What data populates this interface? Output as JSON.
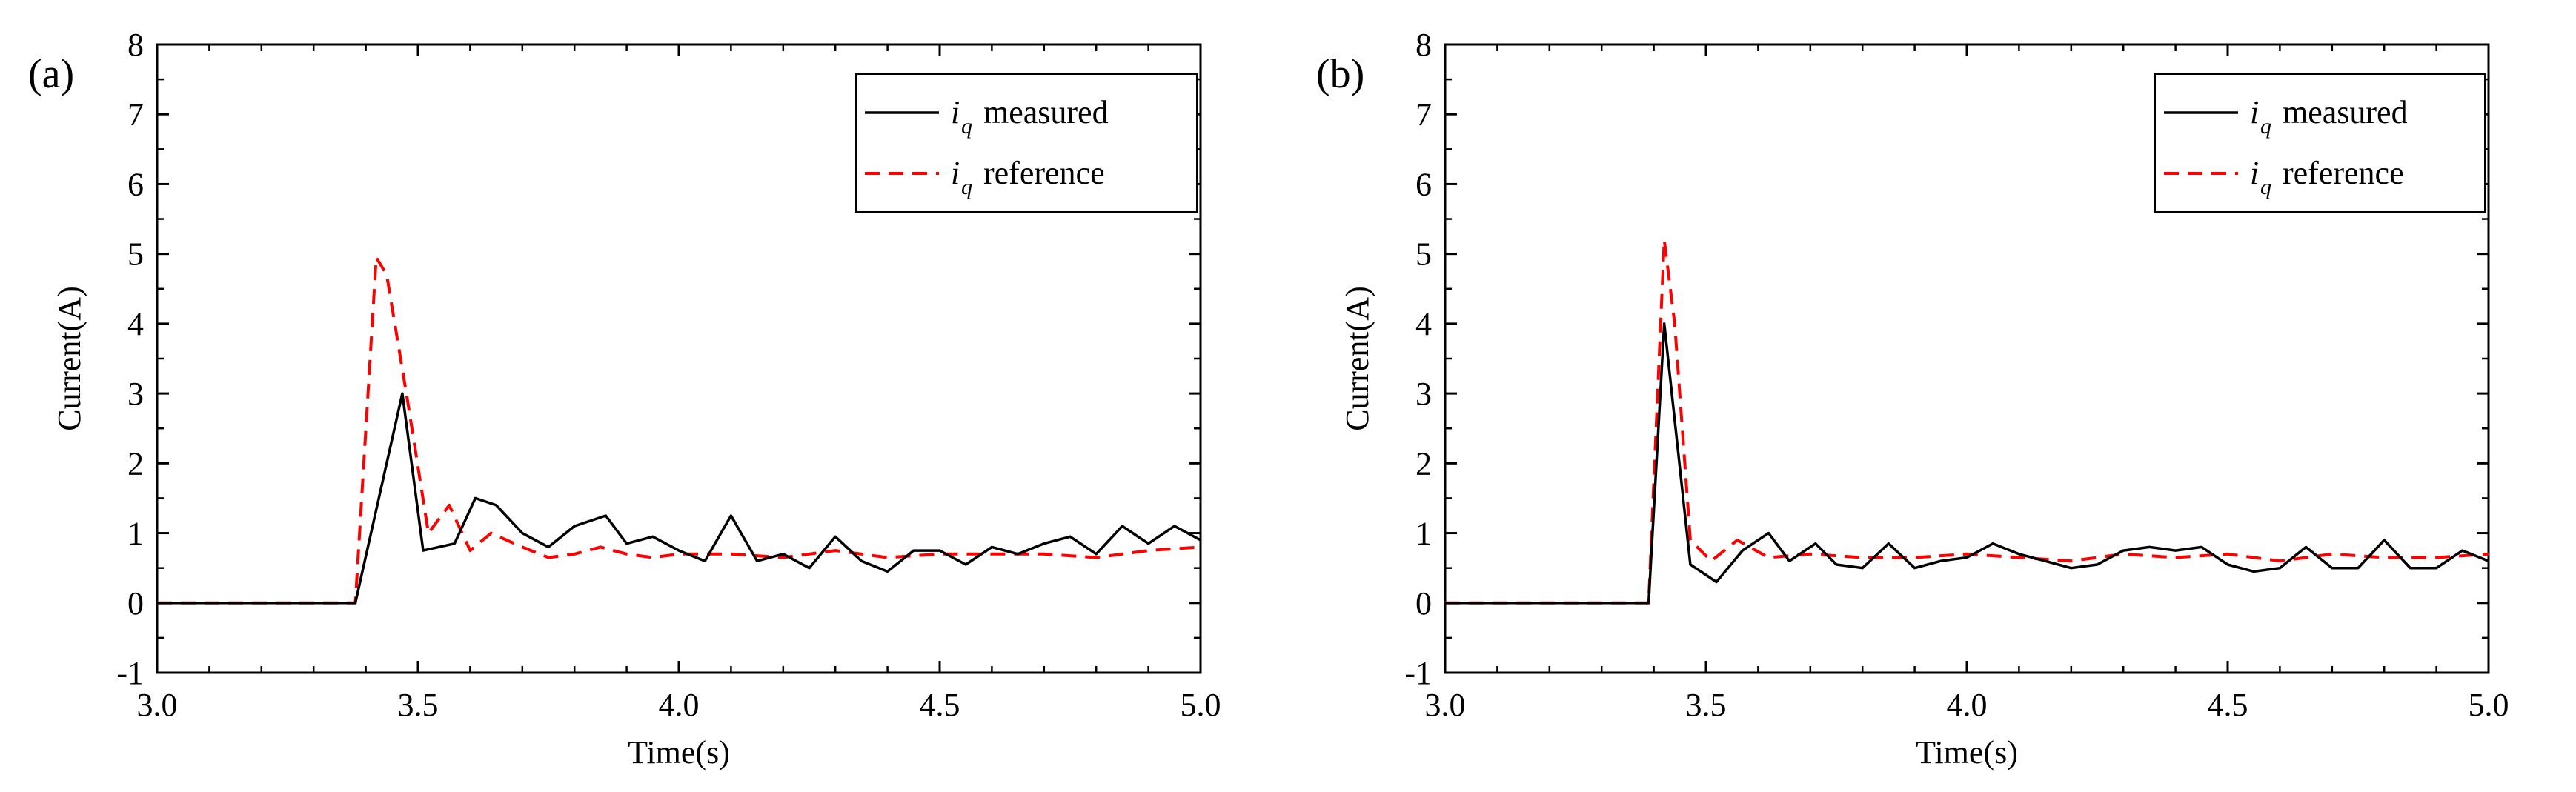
{
  "chart_data": [
    {
      "type": "line",
      "panel_label": "(a)",
      "xlabel": "Time(s)",
      "ylabel": "Current(A)",
      "xlim": [
        3.0,
        5.0
      ],
      "ylim": [
        -1,
        8
      ],
      "xticks": [
        "3.0",
        "3.5",
        "4.0",
        "4.5",
        "5.0"
      ],
      "yticks": [
        "-1",
        "0",
        "1",
        "2",
        "3",
        "4",
        "5",
        "6",
        "7",
        "8"
      ],
      "legend_position": "top-right",
      "series": [
        {
          "name": "measured",
          "legend_symbol": "i",
          "legend_subscript": "q",
          "style": "solid",
          "color": "#000000",
          "x": [
            3.0,
            3.38,
            3.47,
            3.51,
            3.57,
            3.61,
            3.65,
            3.7,
            3.75,
            3.8,
            3.86,
            3.9,
            3.95,
            4.0,
            4.05,
            4.1,
            4.15,
            4.2,
            4.25,
            4.3,
            4.35,
            4.4,
            4.45,
            4.5,
            4.55,
            4.6,
            4.65,
            4.7,
            4.75,
            4.8,
            4.85,
            4.9,
            4.95,
            5.0
          ],
          "y": [
            0,
            0,
            3.0,
            0.75,
            0.85,
            1.5,
            1.4,
            1.0,
            0.8,
            1.1,
            1.25,
            0.85,
            0.95,
            0.75,
            0.6,
            1.25,
            0.6,
            0.7,
            0.5,
            0.95,
            0.6,
            0.45,
            0.75,
            0.75,
            0.55,
            0.8,
            0.7,
            0.85,
            0.95,
            0.7,
            1.1,
            0.85,
            1.1,
            0.9
          ]
        },
        {
          "name": "reference",
          "legend_symbol": "i",
          "legend_subscript": "q",
          "style": "dashed",
          "color": "#ff0000",
          "x": [
            3.0,
            3.38,
            3.42,
            3.44,
            3.48,
            3.52,
            3.56,
            3.6,
            3.64,
            3.7,
            3.75,
            3.8,
            3.85,
            3.9,
            3.95,
            4.0,
            4.1,
            4.2,
            4.3,
            4.4,
            4.5,
            4.6,
            4.7,
            4.8,
            4.9,
            5.0
          ],
          "y": [
            0,
            0,
            4.95,
            4.7,
            2.9,
            1.0,
            1.4,
            0.75,
            1.0,
            0.8,
            0.65,
            0.7,
            0.8,
            0.7,
            0.65,
            0.7,
            0.7,
            0.65,
            0.75,
            0.65,
            0.7,
            0.7,
            0.7,
            0.65,
            0.75,
            0.8
          ]
        }
      ]
    },
    {
      "type": "line",
      "panel_label": "(b)",
      "xlabel": "Time(s)",
      "ylabel": "Current(A)",
      "xlim": [
        3.0,
        5.0
      ],
      "ylim": [
        -1,
        8
      ],
      "xticks": [
        "3.0",
        "3.5",
        "4.0",
        "4.5",
        "5.0"
      ],
      "yticks": [
        "-1",
        "0",
        "1",
        "2",
        "3",
        "4",
        "5",
        "6",
        "7",
        "8"
      ],
      "legend_position": "top-right",
      "series": [
        {
          "name": "measured",
          "legend_symbol": "i",
          "legend_subscript": "q",
          "style": "solid",
          "color": "#000000",
          "x": [
            3.0,
            3.39,
            3.42,
            3.47,
            3.52,
            3.57,
            3.62,
            3.66,
            3.71,
            3.75,
            3.8,
            3.85,
            3.9,
            3.95,
            4.0,
            4.05,
            4.1,
            4.15,
            4.2,
            4.25,
            4.3,
            4.35,
            4.4,
            4.45,
            4.5,
            4.55,
            4.6,
            4.65,
            4.7,
            4.75,
            4.8,
            4.85,
            4.9,
            4.95,
            5.0
          ],
          "y": [
            0,
            0,
            4.0,
            0.55,
            0.3,
            0.75,
            1.0,
            0.6,
            0.85,
            0.55,
            0.5,
            0.85,
            0.5,
            0.6,
            0.65,
            0.85,
            0.7,
            0.6,
            0.5,
            0.55,
            0.75,
            0.8,
            0.75,
            0.8,
            0.55,
            0.45,
            0.5,
            0.8,
            0.5,
            0.5,
            0.9,
            0.5,
            0.5,
            0.75,
            0.6
          ]
        },
        {
          "name": "reference",
          "legend_symbol": "i",
          "legend_subscript": "q",
          "style": "dashed",
          "color": "#ff0000",
          "x": [
            3.0,
            3.39,
            3.42,
            3.44,
            3.47,
            3.51,
            3.56,
            3.62,
            3.7,
            3.8,
            3.9,
            4.0,
            4.1,
            4.2,
            4.3,
            4.4,
            4.5,
            4.6,
            4.7,
            4.8,
            4.9,
            5.0
          ],
          "y": [
            0,
            0,
            5.2,
            4.0,
            0.9,
            0.6,
            0.9,
            0.65,
            0.7,
            0.65,
            0.65,
            0.7,
            0.65,
            0.6,
            0.7,
            0.65,
            0.7,
            0.6,
            0.7,
            0.65,
            0.65,
            0.7
          ]
        }
      ]
    }
  ]
}
